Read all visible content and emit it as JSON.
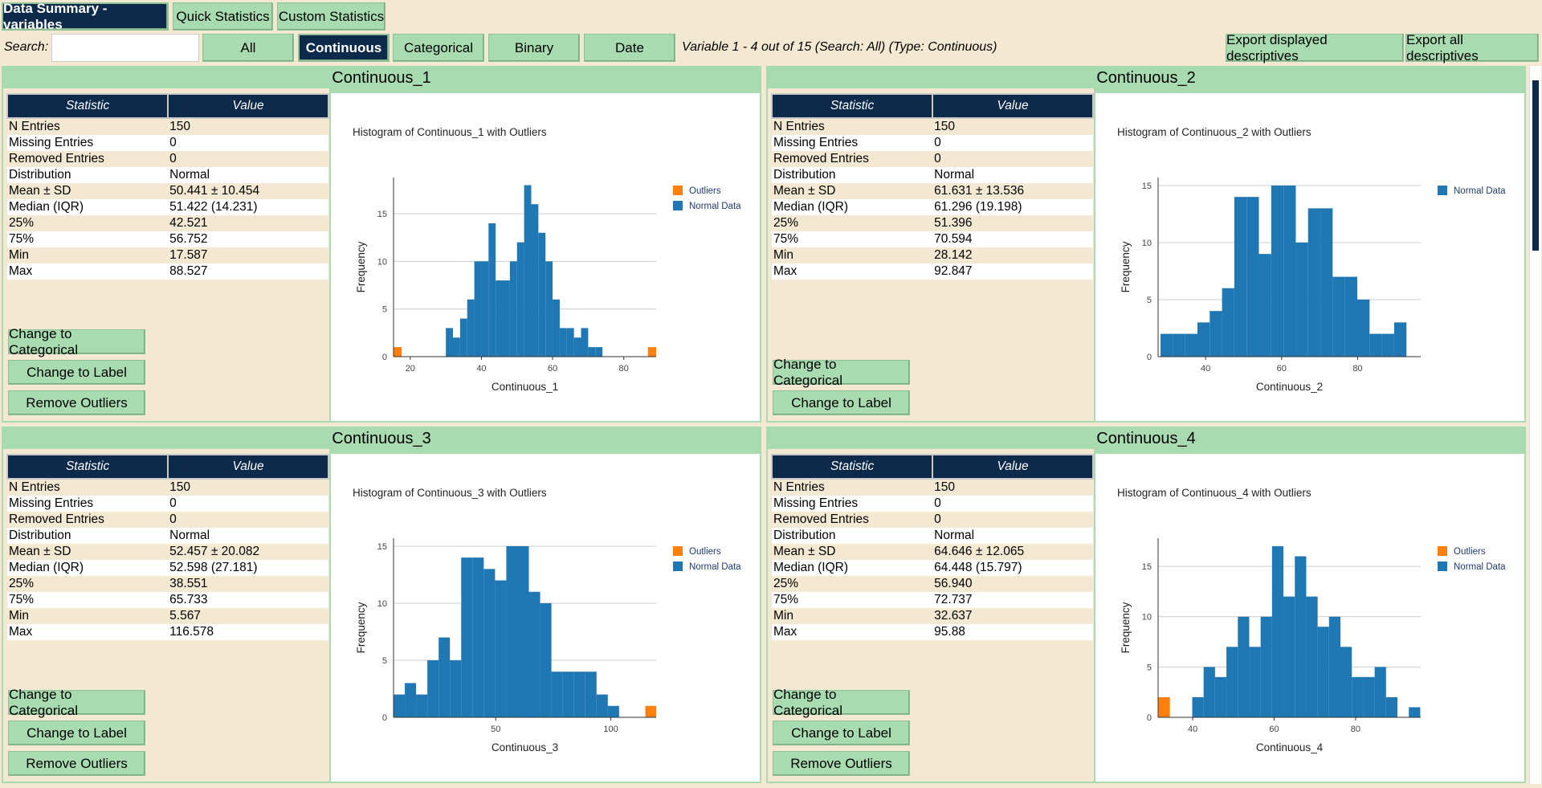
{
  "tabs": [
    "Data Summary - variables",
    "Quick Statistics",
    "Custom Statistics"
  ],
  "toolbar": {
    "search_label": "Search:",
    "filters": [
      "All",
      "Continuous",
      "Categorical",
      "Binary",
      "Date"
    ],
    "active_filter": 1,
    "status": "Variable 1 - 4 out of 15 (Search: All) (Type: Continuous)",
    "exports": [
      "Export displayed descriptives",
      "Export all descriptives"
    ]
  },
  "table_header": [
    "Statistic",
    "Value"
  ],
  "panels": [
    {
      "title": "Continuous_1",
      "rows": [
        [
          "N Entries",
          "150"
        ],
        [
          "Missing Entries",
          "0"
        ],
        [
          "Removed Entries",
          "0"
        ],
        [
          "Distribution",
          "Normal"
        ],
        [
          "Mean ± SD",
          "50.441 ± 10.454"
        ],
        [
          "Median (IQR)",
          "51.422 (14.231)"
        ],
        [
          "25%",
          "42.521"
        ],
        [
          "75%",
          "56.752"
        ],
        [
          "Min",
          "17.587"
        ],
        [
          "Max",
          "88.527"
        ]
      ],
      "buttons": [
        "Change to Categorical",
        "Change to Label",
        "Remove Outliers"
      ],
      "chart": {
        "type": "histogram",
        "title": "Histogram of Continuous_1 with Outliers",
        "x_label": "Continuous_1",
        "y_label": "Frequency",
        "xlim": [
          15.3,
          89.1
        ],
        "xticks": [
          20,
          40,
          60,
          80
        ],
        "ylim": [
          0,
          18.8
        ],
        "yticks": [
          0,
          5,
          10,
          15
        ],
        "grid": true,
        "series": [
          {
            "name": "Outliers",
            "color": "#ff7f0e",
            "bins": [
              15.3,
              17.6,
              86.8,
              89.1
            ],
            "values": [
              1,
              0,
              1
            ]
          },
          {
            "name": "Normal Data",
            "color": "#1f77b4",
            "bins": [
              30,
              32,
              34,
              36,
              38,
              40,
              42,
              44,
              46,
              48,
              50,
              52,
              54,
              56,
              58,
              60,
              62,
              64,
              66,
              68,
              70,
              72,
              74
            ],
            "values": [
              3,
              2,
              4,
              6,
              10,
              10,
              14,
              8,
              8,
              10,
              12,
              18,
              16,
              13,
              10,
              6,
              3,
              3,
              2,
              3,
              1,
              1
            ]
          }
        ]
      }
    },
    {
      "title": "Continuous_2",
      "rows": [
        [
          "N Entries",
          "150"
        ],
        [
          "Missing Entries",
          "0"
        ],
        [
          "Removed Entries",
          "0"
        ],
        [
          "Distribution",
          "Normal"
        ],
        [
          "Mean ± SD",
          "61.631 ± 13.536"
        ],
        [
          "Median (IQR)",
          "61.296 (19.198)"
        ],
        [
          "25%",
          "51.396"
        ],
        [
          "75%",
          "70.594"
        ],
        [
          "Min",
          "28.142"
        ],
        [
          "Max",
          "92.847"
        ]
      ],
      "buttons": [
        "Change to Categorical",
        "Change to Label"
      ],
      "chart": {
        "type": "histogram",
        "title": "Histogram of Continuous_2 with Outliers",
        "x_label": "Continuous_2",
        "y_label": "Frequency",
        "xlim": [
          27.5,
          96.6
        ],
        "xticks": [
          40,
          60,
          80
        ],
        "ylim": [
          0,
          15.7
        ],
        "yticks": [
          0,
          5,
          10,
          15
        ],
        "grid": true,
        "series": [
          {
            "name": "Normal Data",
            "color": "#1f77b4",
            "bins": [
              28.14,
              31.38,
              34.61,
              37.85,
              41.08,
              44.32,
              47.55,
              50.79,
              54.02,
              57.26,
              60.49,
              63.73,
              66.96,
              70.2,
              73.43,
              76.67,
              79.9,
              83.14,
              86.37,
              89.61,
              92.85
            ],
            "values": [
              2,
              2,
              2,
              3,
              4,
              6,
              14,
              14,
              9,
              15,
              15,
              10,
              13,
              13,
              7,
              7,
              5,
              2,
              2,
              3
            ]
          }
        ]
      }
    },
    {
      "title": "Continuous_3",
      "rows": [
        [
          "N Entries",
          "150"
        ],
        [
          "Missing Entries",
          "0"
        ],
        [
          "Removed Entries",
          "0"
        ],
        [
          "Distribution",
          "Normal"
        ],
        [
          "Mean ± SD",
          "52.457 ± 20.082"
        ],
        [
          "Median (IQR)",
          "52.598 (27.181)"
        ],
        [
          "25%",
          "38.551"
        ],
        [
          "75%",
          "65.733"
        ],
        [
          "Min",
          "5.567"
        ],
        [
          "Max",
          "116.578"
        ]
      ],
      "buttons": [
        "Change to Categorical",
        "Change to Label",
        "Remove Outliers"
      ],
      "chart": {
        "type": "histogram",
        "title": "Histogram of Continuous_3 with Outliers",
        "x_label": "Continuous_3",
        "y_label": "Frequency",
        "xlim": [
          5.6,
          119.7
        ],
        "xticks": [
          50,
          100
        ],
        "ylim": [
          0,
          15.7
        ],
        "yticks": [
          0,
          5,
          10,
          15
        ],
        "grid": true,
        "series": [
          {
            "name": "Outliers",
            "color": "#ff7f0e",
            "bins": [
              115.0,
              119.7
            ],
            "values": [
              1
            ]
          },
          {
            "name": "Normal Data",
            "color": "#1f77b4",
            "bins": [
              5.6,
              10.5,
              15.4,
              20.3,
              25.2,
              30.1,
              35.0,
              39.9,
              44.8,
              49.7,
              54.6,
              59.5,
              64.4,
              69.3,
              74.2,
              79.1,
              84.0,
              88.9,
              93.8,
              98.7,
              103.6
            ],
            "values": [
              2,
              3,
              2,
              5,
              7,
              5,
              14,
              14,
              13,
              12,
              15,
              15,
              11,
              10,
              4,
              4,
              4,
              4,
              2,
              1
            ]
          }
        ]
      }
    },
    {
      "title": "Continuous_4",
      "rows": [
        [
          "N Entries",
          "150"
        ],
        [
          "Missing Entries",
          "0"
        ],
        [
          "Removed Entries",
          "0"
        ],
        [
          "Distribution",
          "Normal"
        ],
        [
          "Mean ± SD",
          "64.646 ± 12.065"
        ],
        [
          "Median (IQR)",
          "64.448 (15.797)"
        ],
        [
          "25%",
          "56.940"
        ],
        [
          "75%",
          "72.737"
        ],
        [
          "Min",
          "32.637"
        ],
        [
          "Max",
          "95.88"
        ]
      ],
      "buttons": [
        "Change to Categorical",
        "Change to Label",
        "Remove Outliers"
      ],
      "chart": {
        "type": "histogram",
        "title": "Histogram of Continuous_4 with Outliers",
        "x_label": "Continuous_4",
        "y_label": "Frequency",
        "xlim": [
          31.5,
          96
        ],
        "xticks": [
          40,
          60,
          80
        ],
        "ylim": [
          0,
          17.8
        ],
        "yticks": [
          0,
          5,
          10,
          15
        ],
        "grid": true,
        "series": [
          {
            "name": "Outliers",
            "color": "#ff7f0e",
            "bins": [
              31.5,
              34.4
            ],
            "values": [
              2
            ]
          },
          {
            "name": "Normal Data",
            "color": "#1f77b4",
            "bins": [
              39.88,
              42.68,
              45.48,
              48.28,
              51.08,
              53.88,
              56.68,
              59.48,
              62.28,
              65.08,
              67.88,
              70.68,
              73.48,
              76.28,
              79.08,
              81.88,
              84.68,
              87.48,
              90.28,
              93.08,
              95.88
            ],
            "values": [
              2,
              5,
              4,
              7,
              10,
              7,
              10,
              17,
              12,
              16,
              12,
              9,
              10,
              7,
              4,
              4,
              5,
              2,
              0,
              1
            ]
          }
        ]
      }
    }
  ]
}
